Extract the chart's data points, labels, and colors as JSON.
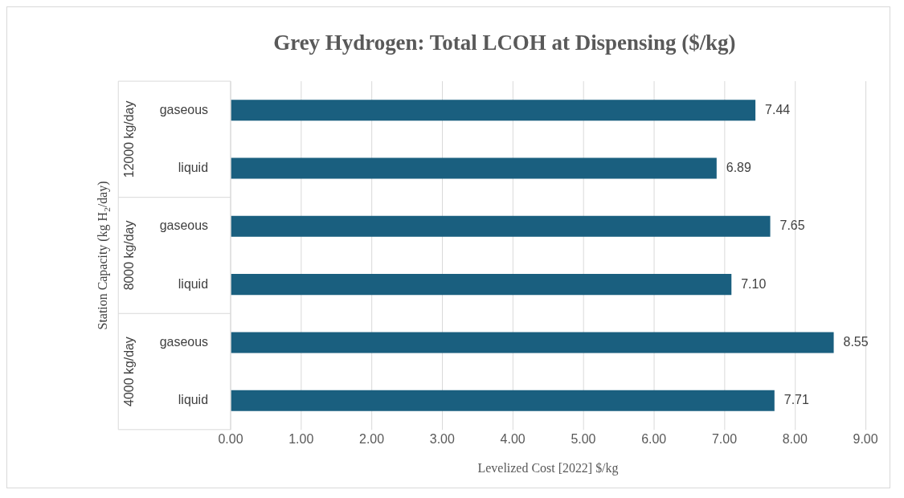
{
  "chart_data": {
    "type": "bar",
    "orientation": "horizontal",
    "title": "Grey Hydrogen: Total LCOH at Dispensing ($/kg)",
    "xlabel": "Levelized Cost [2022] $/kg",
    "ylabel": "Station Capacity (kg H$_{2}$/day)",
    "categories": [
      "gaseous",
      "liquid",
      "gaseous",
      "liquid",
      "gaseous",
      "liquid"
    ],
    "values": [
      7.44,
      6.89,
      7.65,
      7.1,
      8.55,
      7.71
    ],
    "value_labels": [
      "7.44",
      "6.89",
      "7.65",
      "7.10",
      "8.55",
      "7.71"
    ],
    "color": "#1a5f7f",
    "xlim": [
      0,
      9
    ],
    "xticks": [
      {
        "value": 0,
        "label": "0.00"
      },
      {
        "value": 1,
        "label": "1.00"
      },
      {
        "value": 2,
        "label": "2.00"
      },
      {
        "value": 3,
        "label": "3.00"
      },
      {
        "value": 4,
        "label": "4.00"
      },
      {
        "value": 5,
        "label": "5.00"
      },
      {
        "value": 6,
        "label": "6.00"
      },
      {
        "value": 7,
        "label": "7.00"
      },
      {
        "value": 8,
        "label": "8.00"
      },
      {
        "value": 9,
        "label": "9.00"
      }
    ],
    "grid": "x",
    "legend": false,
    "annotations": [
      "12000 kg/day",
      "8000 kg/day",
      "4000 kg/day"
    ]
  }
}
